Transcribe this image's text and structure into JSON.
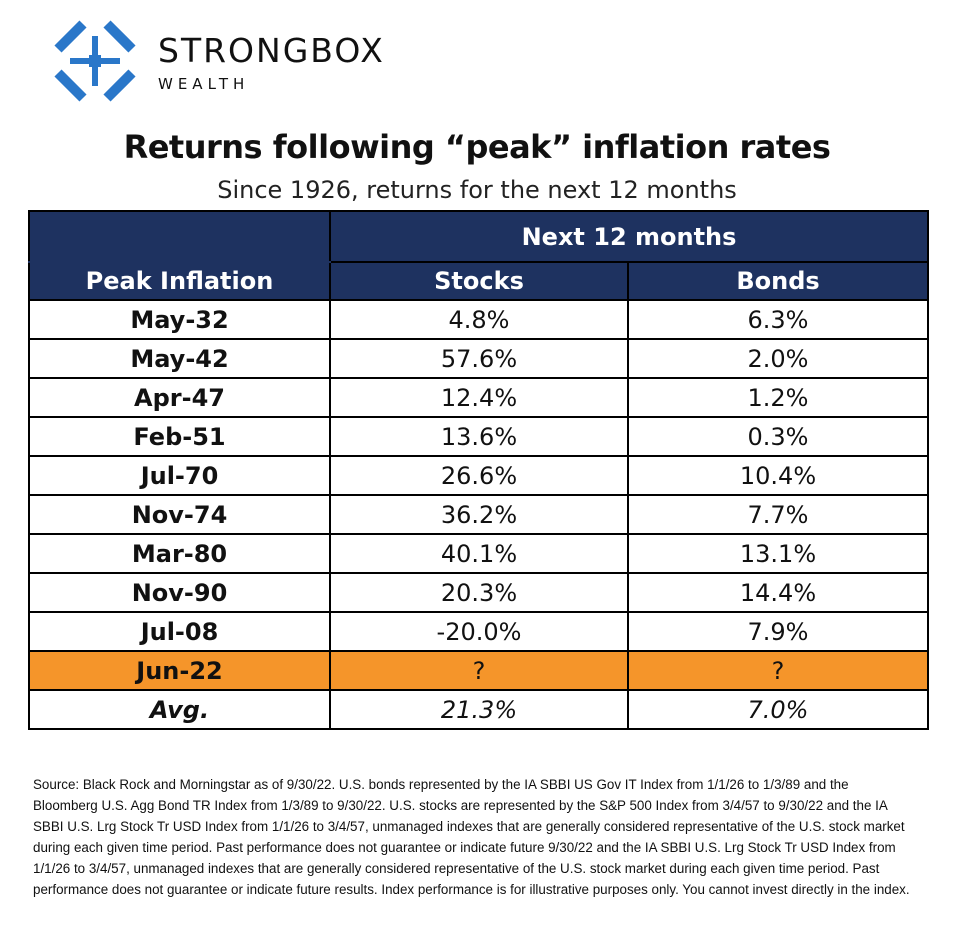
{
  "brand": {
    "name": "STRONGBOX",
    "sub": "WEALTH"
  },
  "chart_data": {
    "type": "table",
    "title": "Returns following “peak” inflation rates",
    "subtitle": "Since 1926, returns for the next 12 months",
    "group_header": "Next 12 months",
    "columns": [
      "Peak Inflation",
      "Stocks",
      "Bonds"
    ],
    "rows": [
      {
        "date": "May-32",
        "stocks": "4.8%",
        "bonds": "6.3%"
      },
      {
        "date": "May-42",
        "stocks": "57.6%",
        "bonds": "2.0%"
      },
      {
        "date": "Apr-47",
        "stocks": "12.4%",
        "bonds": "1.2%"
      },
      {
        "date": "Feb-51",
        "stocks": "13.6%",
        "bonds": "0.3%"
      },
      {
        "date": "Jul-70",
        "stocks": "26.6%",
        "bonds": "10.4%"
      },
      {
        "date": "Nov-74",
        "stocks": "36.2%",
        "bonds": "7.7%"
      },
      {
        "date": "Mar-80",
        "stocks": "40.1%",
        "bonds": "13.1%"
      },
      {
        "date": "Nov-90",
        "stocks": "20.3%",
        "bonds": "14.4%"
      },
      {
        "date": "Jul-08",
        "stocks": "-20.0%",
        "bonds": "7.9%"
      },
      {
        "date": "Jun-22",
        "stocks": "?",
        "bonds": "?",
        "highlight": true
      }
    ],
    "average": {
      "label": "Avg.",
      "stocks": "21.3%",
      "bonds": "7.0%"
    },
    "highlight_color": "#f5952a",
    "header_color": "#1e3260"
  },
  "source_text": "Source: Black Rock and  Morningstar as of 9/30/22. U.S. bonds represented by the IA SBBI US Gov IT Index from 1/1/26 to 1/3/89 and the Bloomberg U.S. Agg Bond TR Index from 1/3/89 to 9/30/22. U.S. stocks are represented by the S&P 500 Index from 3/4/57 to 9/30/22 and the IA SBBI U.S. Lrg Stock Tr USD Index from 1/1/26 to 3/4/57, unmanaged indexes that are generally considered representative of the U.S. stock market during each given time period. Past performance does not guarantee or indicate future 9/30/22 and the IA SBBI U.S. Lrg Stock Tr USD Index from 1/1/26 to 3/4/57, unmanaged indexes that are generally considered representative of the U.S. stock market during each given time period. Past performance does not guarantee or indicate future results. Index performance is for illustrative purposes only. You cannot invest directly in the index."
}
